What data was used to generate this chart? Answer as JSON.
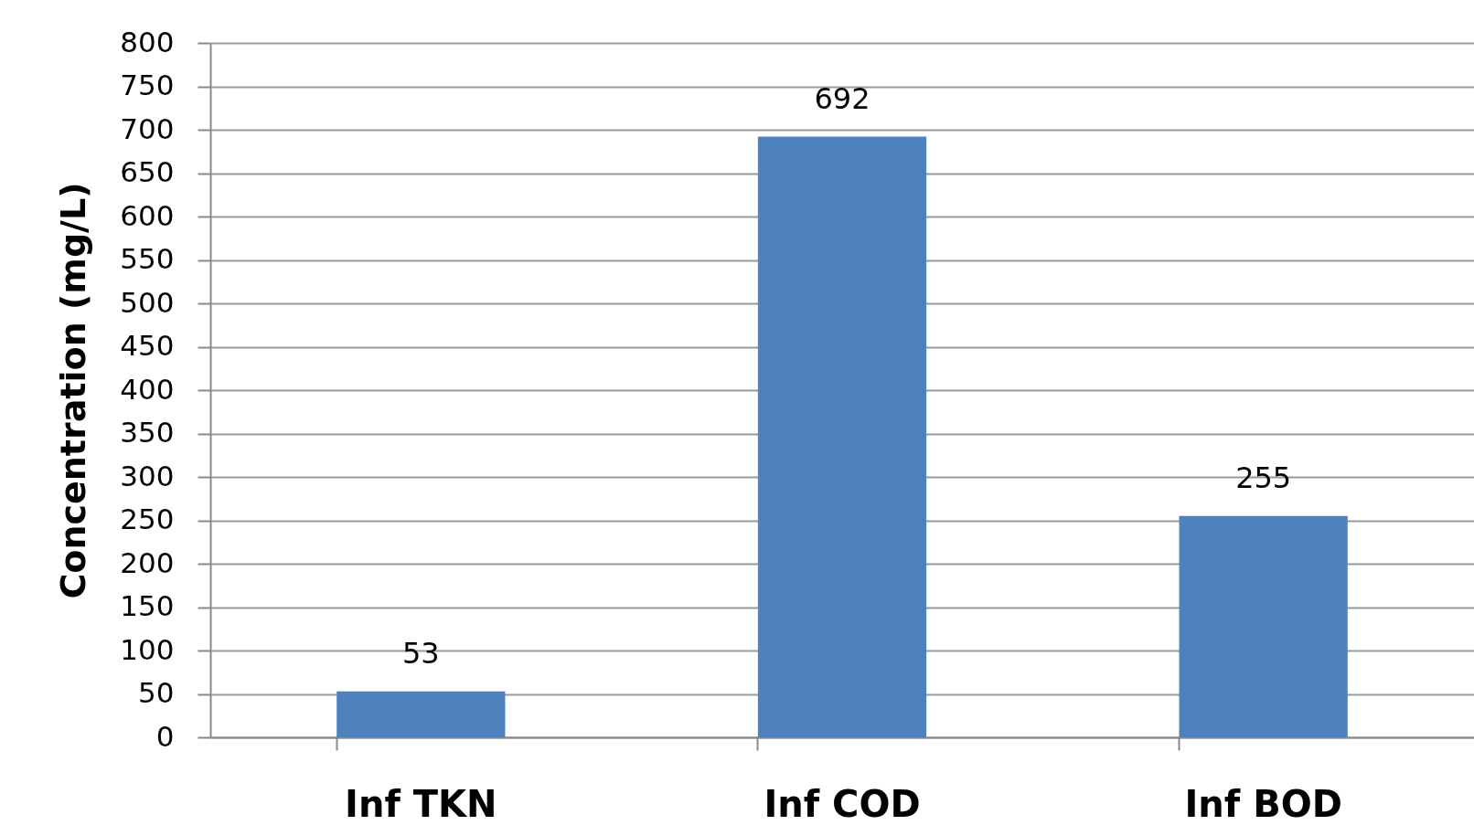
{
  "chart_data": {
    "type": "bar",
    "ylabel": "Concentration (mg/L)",
    "categories": [
      "Inf TKN",
      "Inf COD",
      "Inf BOD"
    ],
    "values": [
      53,
      692,
      255
    ],
    "color": "#4f81bd",
    "ylim": [
      0,
      800
    ],
    "yticks": [
      0,
      50,
      100,
      150,
      200,
      250,
      300,
      350,
      400,
      450,
      500,
      550,
      600,
      650,
      700,
      750,
      800
    ],
    "grid": "y",
    "data_labels": true
  }
}
